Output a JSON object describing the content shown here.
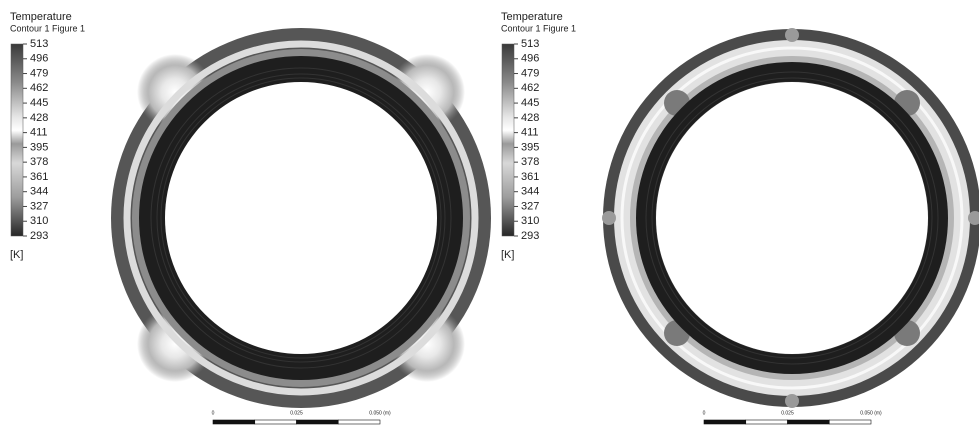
{
  "panels": [
    {
      "legend": {
        "title": "Temperature",
        "subtitle": "Contour 1 Figure 1",
        "ticks": [
          513,
          496,
          479,
          462,
          445,
          428,
          411,
          395,
          378,
          361,
          344,
          327,
          310,
          293
        ],
        "unit": "[K]"
      },
      "scale_bar": {
        "labels": [
          "0",
          "0.025",
          "0.050 (m)"
        ]
      }
    },
    {
      "legend": {
        "title": "Temperature",
        "subtitle": "Contour 1 Figure 1",
        "ticks": [
          513,
          496,
          479,
          462,
          445,
          428,
          411,
          395,
          378,
          361,
          344,
          327,
          310,
          293
        ],
        "unit": "[K]"
      },
      "scale_bar": {
        "labels": [
          "0",
          "0.025",
          "0.050 (m)"
        ]
      }
    }
  ]
}
